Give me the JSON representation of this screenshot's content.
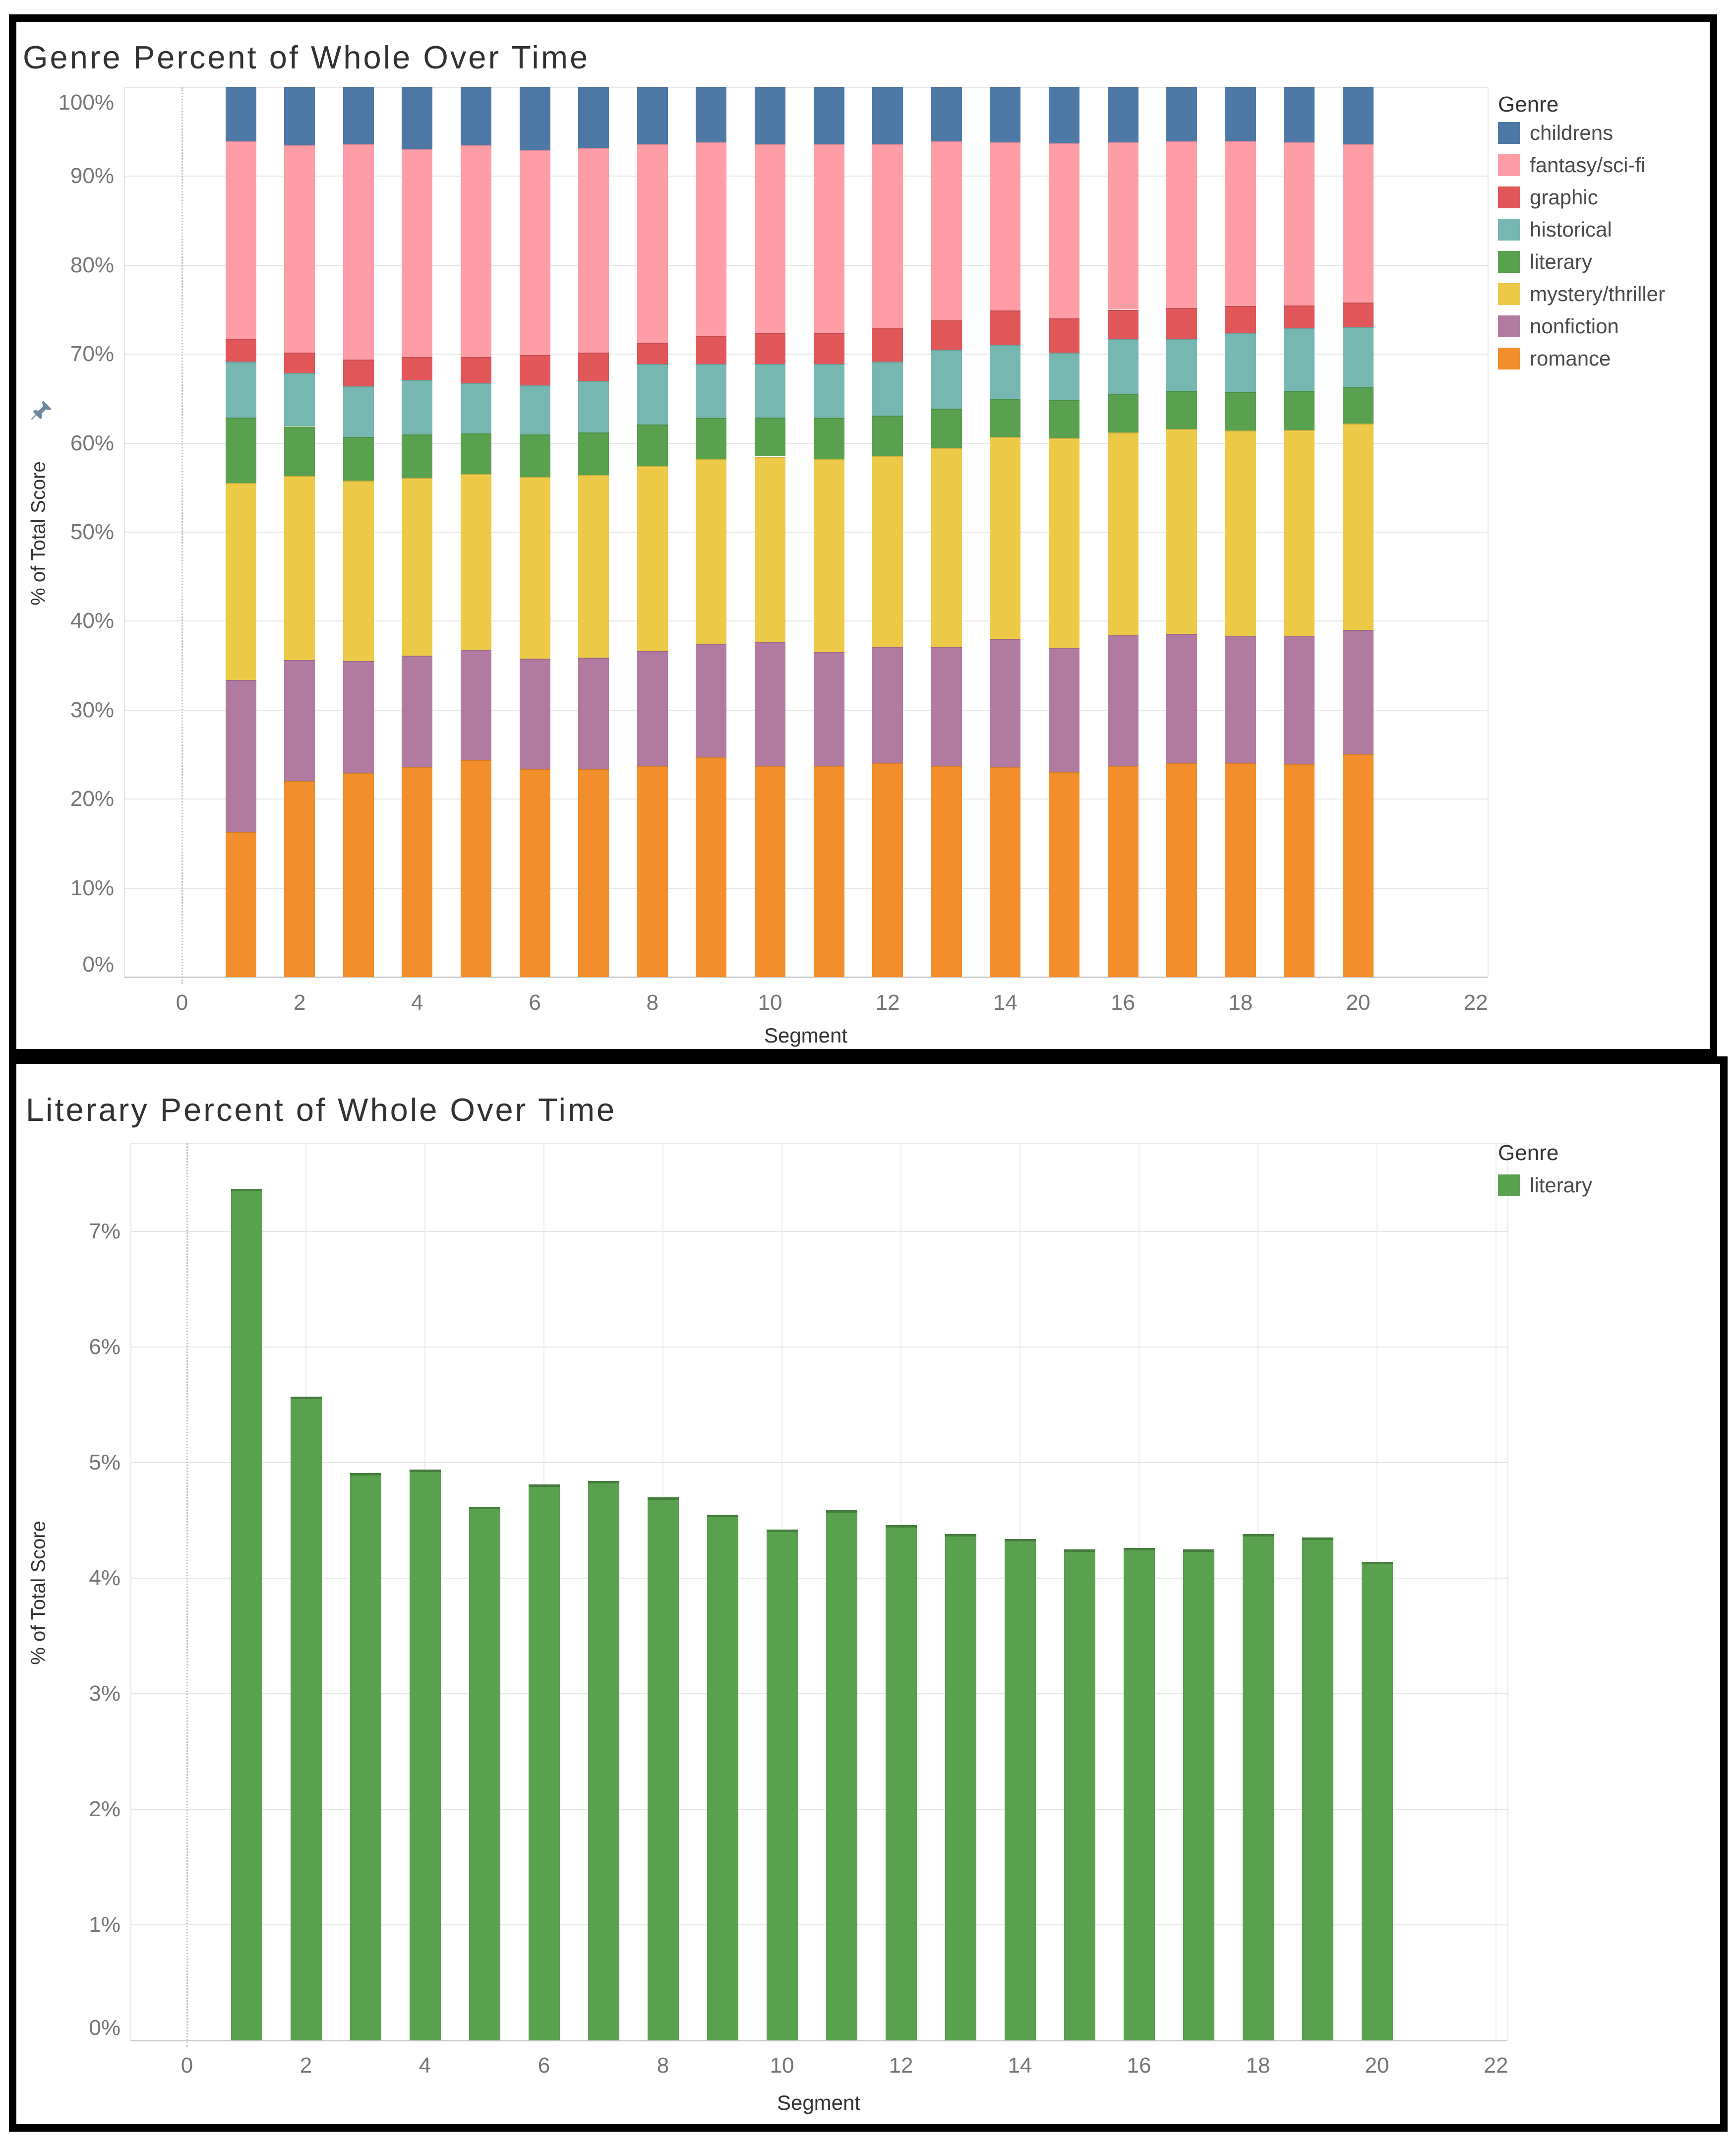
{
  "chart_data": [
    {
      "type": "bar",
      "stacked": true,
      "title": "Genre Percent of Whole Over Time",
      "xlabel": "Segment",
      "ylabel": "% of Total Score",
      "legend_title": "Genre",
      "legend_order": [
        "childrens",
        "fantasy/sci-fi",
        "graphic",
        "historical",
        "literary",
        "mystery/thriller",
        "nonfiction",
        "romance"
      ],
      "x": [
        1,
        2,
        3,
        4,
        5,
        6,
        7,
        8,
        9,
        10,
        11,
        12,
        13,
        14,
        15,
        16,
        17,
        18,
        19,
        20
      ],
      "x_ticks": [
        0,
        2,
        4,
        6,
        8,
        10,
        12,
        14,
        16,
        18,
        20,
        22
      ],
      "y_ticks": [
        "0%",
        "10%",
        "20%",
        "30%",
        "40%",
        "50%",
        "60%",
        "70%",
        "80%",
        "90%",
        "100%"
      ],
      "ylim": [
        0,
        101.5
      ],
      "series": [
        {
          "name": "romance",
          "color": "#F28E2B",
          "values": [
            16.3,
            22.0,
            22.9,
            23.6,
            24.4,
            23.4,
            23.4,
            23.7,
            24.7,
            23.7,
            23.7,
            24.1,
            23.7,
            23.6,
            23.0,
            23.7,
            24.0,
            24.0,
            23.9,
            25.1
          ]
        },
        {
          "name": "nonfiction",
          "color": "#B07AA1",
          "values": [
            17.1,
            13.6,
            12.6,
            12.5,
            12.4,
            12.4,
            12.5,
            12.9,
            12.7,
            13.9,
            12.8,
            13.0,
            13.4,
            14.4,
            14.0,
            14.7,
            14.6,
            14.3,
            14.4,
            13.9
          ]
        },
        {
          "name": "mystery/thriller",
          "color": "#EDC948",
          "values": [
            22.1,
            20.7,
            20.3,
            20.0,
            19.7,
            20.4,
            20.5,
            20.8,
            20.8,
            20.9,
            21.7,
            21.5,
            22.4,
            22.7,
            23.6,
            22.8,
            23.0,
            23.1,
            23.2,
            23.2
          ]
        },
        {
          "name": "literary",
          "color": "#59A14F",
          "values": [
            7.4,
            5.6,
            4.9,
            4.9,
            4.6,
            4.8,
            4.8,
            4.7,
            4.6,
            4.4,
            4.6,
            4.5,
            4.4,
            4.3,
            4.3,
            4.3,
            4.3,
            4.4,
            4.4,
            4.1
          ]
        },
        {
          "name": "historical",
          "color": "#76B7B2",
          "values": [
            6.3,
            6.0,
            5.7,
            6.1,
            5.7,
            5.5,
            5.8,
            6.8,
            6.1,
            6.0,
            6.1,
            6.1,
            6.6,
            6.0,
            5.3,
            6.2,
            5.8,
            6.6,
            7.0,
            6.8
          ]
        },
        {
          "name": "graphic",
          "color": "#E15759",
          "values": [
            2.5,
            2.3,
            3.0,
            2.6,
            2.9,
            3.4,
            3.2,
            2.4,
            3.2,
            3.5,
            3.5,
            3.7,
            3.3,
            3.9,
            3.8,
            3.3,
            3.5,
            3.0,
            2.6,
            2.7
          ]
        },
        {
          "name": "fantasy/sci-fi",
          "color": "#FF9DA7",
          "values": [
            22.2,
            23.3,
            24.2,
            23.4,
            23.8,
            23.1,
            23.0,
            22.3,
            21.7,
            21.2,
            21.2,
            20.7,
            20.1,
            18.9,
            19.7,
            18.8,
            18.7,
            18.6,
            18.3,
            17.8
          ]
        },
        {
          "name": "childrens",
          "color": "#4E79A7",
          "values": [
            6.1,
            6.5,
            6.4,
            6.9,
            6.5,
            7.0,
            6.8,
            6.4,
            6.2,
            6.4,
            6.4,
            6.4,
            6.1,
            6.2,
            6.3,
            6.2,
            6.1,
            6.0,
            6.2,
            6.4
          ]
        }
      ]
    },
    {
      "type": "bar",
      "stacked": false,
      "title": "Literary Percent of Whole Over Time",
      "xlabel": "Segment",
      "ylabel": "% of Total Score",
      "legend_title": "Genre",
      "legend_order": [
        "literary"
      ],
      "x": [
        1,
        2,
        3,
        4,
        5,
        6,
        7,
        8,
        9,
        10,
        11,
        12,
        13,
        14,
        15,
        16,
        17,
        18,
        19,
        20
      ],
      "x_ticks": [
        0,
        2,
        4,
        6,
        8,
        10,
        12,
        14,
        16,
        18,
        20,
        22
      ],
      "y_ticks": [
        "0%",
        "1%",
        "2%",
        "3%",
        "4%",
        "5%",
        "6%",
        "7%"
      ],
      "ylim": [
        0,
        7.77
      ],
      "series": [
        {
          "name": "literary",
          "color": "#59A14F",
          "values": [
            7.37,
            5.57,
            4.91,
            4.94,
            4.62,
            4.81,
            4.84,
            4.7,
            4.55,
            4.42,
            4.59,
            4.46,
            4.38,
            4.34,
            4.25,
            4.26,
            4.25,
            4.38,
            4.35,
            4.14
          ]
        }
      ]
    }
  ]
}
